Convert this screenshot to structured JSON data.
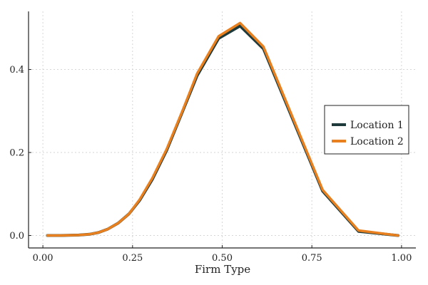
{
  "chart_data": {
    "type": "line",
    "title": "",
    "xlabel": "Firm Type",
    "ylabel": "",
    "xlim": [
      -0.04,
      1.04
    ],
    "ylim": [
      -0.03,
      0.54
    ],
    "xticks": [
      0.0,
      0.25,
      0.5,
      0.75,
      1.0
    ],
    "xtick_labels": [
      "0.00",
      "0.25",
      "0.50",
      "0.75",
      "1.00"
    ],
    "yticks": [
      0.0,
      0.2,
      0.4
    ],
    "ytick_labels": [
      "0.0",
      "0.2",
      "0.4"
    ],
    "grid": true,
    "legend_position": "right",
    "series": [
      {
        "name": "Location 1",
        "color": "#1e3a3a",
        "x": [
          0.0125,
          0.05,
          0.1,
          0.13,
          0.155,
          0.18,
          0.21,
          0.24,
          0.27,
          0.305,
          0.345,
          0.39,
          0.43,
          0.49,
          0.55,
          0.615,
          0.78,
          0.88,
          0.99
        ],
        "y": [
          0.0,
          0.0,
          0.001,
          0.003,
          0.007,
          0.015,
          0.03,
          0.052,
          0.085,
          0.135,
          0.205,
          0.3,
          0.385,
          0.475,
          0.505,
          0.45,
          0.107,
          0.01,
          0.0
        ]
      },
      {
        "name": "Location 2",
        "color": "#e8801f",
        "x": [
          0.0125,
          0.05,
          0.1,
          0.13,
          0.155,
          0.18,
          0.21,
          0.24,
          0.27,
          0.305,
          0.345,
          0.39,
          0.43,
          0.49,
          0.55,
          0.615,
          0.78,
          0.88,
          0.99
        ],
        "y": [
          0.0,
          0.0,
          0.001,
          0.003,
          0.007,
          0.015,
          0.03,
          0.052,
          0.087,
          0.138,
          0.208,
          0.302,
          0.39,
          0.48,
          0.512,
          0.455,
          0.11,
          0.012,
          0.0
        ]
      }
    ]
  }
}
